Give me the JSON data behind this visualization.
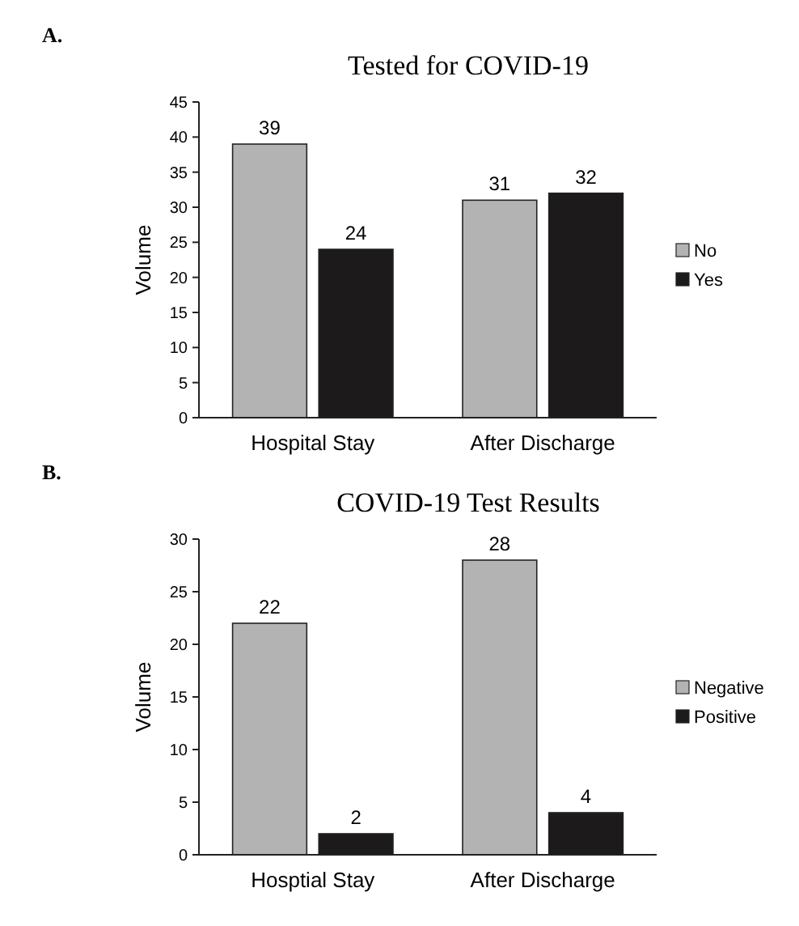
{
  "chart_data": [
    {
      "type": "bar",
      "title": "Tested for COVID-19",
      "ylabel": "Volume",
      "annotations": [
        "A."
      ],
      "categories": [
        "Hospital Stay",
        "After Discharge"
      ],
      "series": [
        {
          "name": "No",
          "color": "#b3b3b3",
          "values": [
            39,
            31
          ]
        },
        {
          "name": "Yes",
          "color": "#1c1a1a",
          "values": [
            24,
            32
          ]
        }
      ],
      "ylim": [
        0,
        45
      ],
      "yticks": [
        0,
        5,
        10,
        15,
        20,
        25,
        30,
        35,
        40,
        45
      ],
      "data_labels": true,
      "legend": "right"
    },
    {
      "type": "bar",
      "title": "COVID-19 Test Results",
      "ylabel": "Volume",
      "annotations": [
        "B."
      ],
      "categories": [
        "Hosptial Stay",
        "After Discharge"
      ],
      "series": [
        {
          "name": "Negative",
          "color": "#b3b3b3",
          "values": [
            22,
            28
          ]
        },
        {
          "name": "Positive",
          "color": "#1c1a1a",
          "values": [
            2,
            4
          ]
        }
      ],
      "ylim": [
        0,
        30
      ],
      "yticks": [
        0,
        5,
        10,
        15,
        20,
        25,
        30
      ],
      "data_labels": true,
      "legend": "right"
    }
  ]
}
